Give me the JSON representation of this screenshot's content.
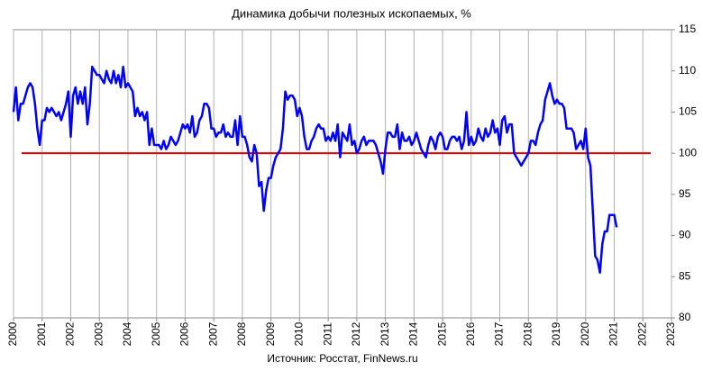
{
  "chart_data": {
    "type": "line",
    "title": "Динамика добычи полезных ископаемых, %",
    "source": "Источник: Росстат, FinNews.ru",
    "x": [
      2000,
      2000.083,
      2000.167,
      2000.25,
      2000.333,
      2000.417,
      2000.5,
      2000.583,
      2000.667,
      2000.75,
      2000.833,
      2000.917,
      2001,
      2001.083,
      2001.167,
      2001.25,
      2001.333,
      2001.417,
      2001.5,
      2001.583,
      2001.667,
      2001.75,
      2001.833,
      2001.917,
      2002,
      2002.083,
      2002.167,
      2002.25,
      2002.333,
      2002.417,
      2002.5,
      2002.583,
      2002.667,
      2002.75,
      2002.833,
      2002.917,
      2003,
      2003.083,
      2003.167,
      2003.25,
      2003.333,
      2003.417,
      2003.5,
      2003.583,
      2003.667,
      2003.75,
      2003.833,
      2003.917,
      2004,
      2004.083,
      2004.167,
      2004.25,
      2004.333,
      2004.417,
      2004.5,
      2004.583,
      2004.667,
      2004.75,
      2004.833,
      2004.917,
      2005,
      2005.083,
      2005.167,
      2005.25,
      2005.333,
      2005.417,
      2005.5,
      2005.583,
      2005.667,
      2005.75,
      2005.833,
      2005.917,
      2006,
      2006.083,
      2006.167,
      2006.25,
      2006.333,
      2006.417,
      2006.5,
      2006.583,
      2006.667,
      2006.75,
      2006.833,
      2006.917,
      2007,
      2007.083,
      2007.167,
      2007.25,
      2007.333,
      2007.417,
      2007.5,
      2007.583,
      2007.667,
      2007.75,
      2007.833,
      2007.917,
      2008,
      2008.083,
      2008.167,
      2008.25,
      2008.333,
      2008.417,
      2008.5,
      2008.583,
      2008.667,
      2008.75,
      2008.833,
      2008.917,
      2009,
      2009.083,
      2009.167,
      2009.25,
      2009.333,
      2009.417,
      2009.5,
      2009.583,
      2009.667,
      2009.75,
      2009.833,
      2009.917,
      2010,
      2010.083,
      2010.167,
      2010.25,
      2010.333,
      2010.417,
      2010.5,
      2010.583,
      2010.667,
      2010.75,
      2010.833,
      2010.917,
      2011,
      2011.083,
      2011.167,
      2011.25,
      2011.333,
      2011.417,
      2011.5,
      2011.583,
      2011.667,
      2011.75,
      2011.833,
      2011.917,
      2012,
      2012.083,
      2012.167,
      2012.25,
      2012.333,
      2012.417,
      2012.5,
      2012.583,
      2012.667,
      2012.75,
      2012.833,
      2012.917,
      2013,
      2013.083,
      2013.167,
      2013.25,
      2013.333,
      2013.417,
      2013.5,
      2013.583,
      2013.667,
      2013.75,
      2013.833,
      2013.917,
      2014,
      2014.083,
      2014.167,
      2014.25,
      2014.333,
      2014.417,
      2014.5,
      2014.583,
      2014.667,
      2014.75,
      2014.833,
      2014.917,
      2015,
      2015.083,
      2015.167,
      2015.25,
      2015.333,
      2015.417,
      2015.5,
      2015.583,
      2015.667,
      2015.75,
      2015.833,
      2015.917,
      2016,
      2016.083,
      2016.167,
      2016.25,
      2016.333,
      2016.417,
      2016.5,
      2016.583,
      2016.667,
      2016.75,
      2016.833,
      2016.917,
      2017,
      2017.083,
      2017.167,
      2017.25,
      2017.333,
      2017.417,
      2017.5,
      2017.583,
      2017.667,
      2017.75,
      2017.833,
      2017.917,
      2018,
      2018.083,
      2018.167,
      2018.25,
      2018.333,
      2018.417,
      2018.5,
      2018.583,
      2018.667,
      2018.75,
      2018.833,
      2018.917,
      2019,
      2019.083,
      2019.167,
      2019.25,
      2019.333,
      2019.417,
      2019.5,
      2019.583,
      2019.667,
      2019.75,
      2019.833,
      2019.917,
      2020,
      2020.083,
      2020.167,
      2020.25,
      2020.333,
      2020.417,
      2020.5,
      2020.583,
      2020.667,
      2020.75,
      2020.833,
      2020.917,
      2021,
      2021.083
    ],
    "series": [
      {
        "color": "#0000ff",
        "values": [
          105,
          108,
          104,
          106,
          106,
          107,
          108,
          108.5,
          108,
          106,
          103,
          101,
          104,
          104,
          105.5,
          105,
          105.5,
          105,
          104.5,
          105,
          104,
          105,
          106,
          107.5,
          102,
          107,
          108,
          106,
          107.5,
          106,
          108,
          103.5,
          106,
          110.5,
          110,
          109.5,
          109.5,
          109,
          108.5,
          110,
          109,
          108.5,
          110,
          108.5,
          109.5,
          108,
          110.5,
          108,
          108.5,
          108,
          107.5,
          104.5,
          105.5,
          104.5,
          105,
          104,
          105,
          101,
          103,
          101,
          101,
          101,
          100.5,
          101.5,
          100.5,
          101,
          102,
          101.5,
          101,
          101.5,
          102.5,
          103.5,
          103,
          103.5,
          102.5,
          104.5,
          102,
          102.5,
          104,
          104.5,
          106,
          106,
          105.5,
          103,
          103,
          102,
          102.5,
          102.5,
          103.5,
          102,
          102.5,
          102,
          102,
          104,
          101,
          104.5,
          102,
          102,
          101,
          99.5,
          99,
          101,
          100,
          96,
          96.5,
          93,
          95.5,
          97,
          97,
          98.5,
          99.5,
          100,
          100.5,
          103,
          107.5,
          106.5,
          107,
          107,
          106.5,
          104.5,
          105.5,
          104.5,
          102,
          100.5,
          100.5,
          101.5,
          102,
          103,
          103.5,
          103,
          103,
          101.5,
          102,
          101.5,
          102.5,
          101.5,
          103.5,
          99.5,
          102.5,
          102,
          101.5,
          103.5,
          101,
          101.5,
          100,
          100.5,
          101.5,
          102,
          101,
          101.5,
          101.5,
          101.5,
          101,
          100,
          99,
          97.5,
          100.5,
          102.5,
          102.5,
          102,
          102,
          103.5,
          100.5,
          102.5,
          101.5,
          101.5,
          102,
          101,
          101.5,
          102.5,
          101.5,
          100.5,
          100,
          99.5,
          101,
          102,
          101.5,
          100.5,
          102,
          102.5,
          102,
          100.5,
          100.5,
          101.5,
          102,
          102,
          101.5,
          102,
          100.5,
          101.5,
          105,
          101,
          102,
          101,
          101.5,
          103,
          102,
          101.5,
          103,
          102,
          102.5,
          104,
          102.5,
          103,
          101,
          104,
          104.5,
          102.5,
          103.5,
          103.5,
          100,
          99.5,
          99,
          98.5,
          99,
          99.5,
          100,
          101.5,
          101.5,
          101,
          102.5,
          103.5,
          104,
          106.5,
          107.5,
          108.5,
          107,
          106,
          106.5,
          106,
          106,
          105.5,
          103,
          103,
          103,
          102.5,
          100.5,
          101,
          101.5,
          100.5,
          103,
          99.5,
          98.5,
          93,
          87.5,
          87,
          85.5,
          89,
          90.5,
          90.5,
          92.5,
          92.5,
          92.5,
          91
        ]
      }
    ],
    "reference_line": {
      "value": 100,
      "color": "#e00000"
    },
    "xlim": [
      2000,
      2023
    ],
    "xticks": [
      2000,
      2001,
      2002,
      2003,
      2004,
      2005,
      2006,
      2007,
      2008,
      2009,
      2010,
      2011,
      2012,
      2013,
      2014,
      2015,
      2016,
      2017,
      2018,
      2019,
      2020,
      2021,
      2022,
      2023
    ],
    "ylim": [
      80,
      115
    ],
    "yticks": [
      80,
      85,
      90,
      95,
      100,
      105,
      110,
      115
    ],
    "grid": true
  }
}
